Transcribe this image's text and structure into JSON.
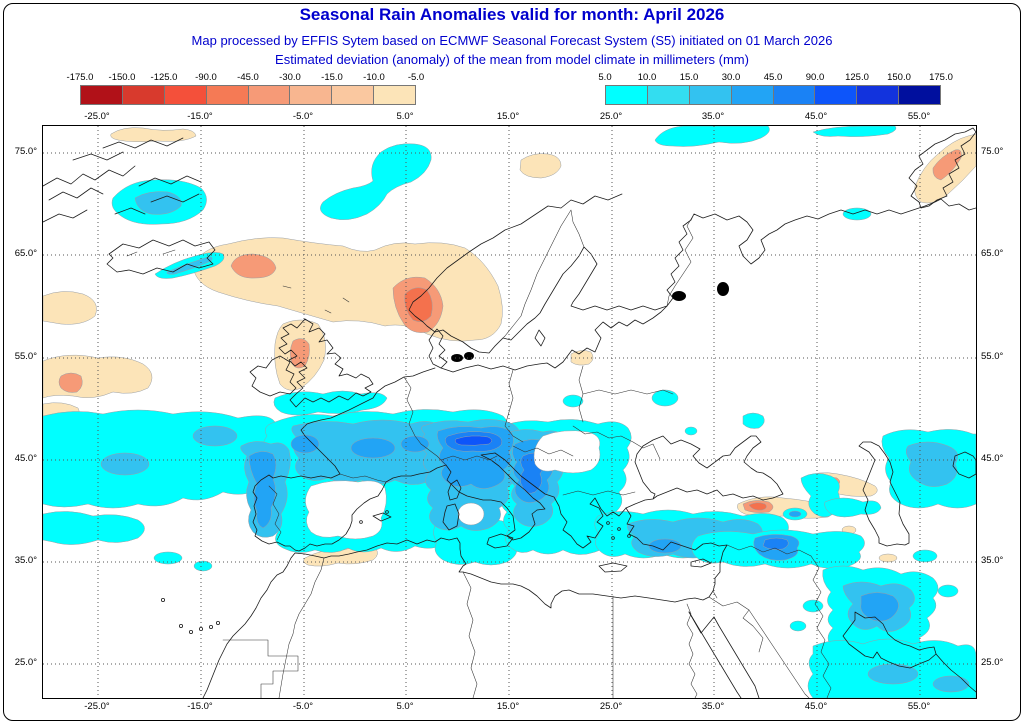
{
  "header": {
    "title": "Seasonal Rain Anomalies valid for month: April 2026",
    "subtitle1": "Map processed by EFFIS Sytem based on ECMWF Seasonal Forecast System (S5) initiated on 01 March 2026",
    "subtitle2": "Estimated deviation (anomaly) of the mean from model climate in millimeters (mm)"
  },
  "colors": {
    "title_text": "#0000cd",
    "subtitle_text": "#0000cd",
    "frame": "#000000",
    "grid": "#555555",
    "coastline": "#1c1c1c"
  },
  "legend_negative": {
    "tick_labels": [
      "-175.0",
      "-150.0",
      "-125.0",
      "-90.0",
      "-45.0",
      "-30.0",
      "-15.0",
      "-10.0",
      "-5.0"
    ],
    "cell_colors": [
      "#b11118",
      "#d83a2d",
      "#f4503a",
      "#f57a55",
      "#f69a77",
      "#f8b690",
      "#fac8a0",
      "#fce4b8"
    ]
  },
  "legend_positive": {
    "tick_labels": [
      "5.0",
      "10.0",
      "15.0",
      "30.0",
      "45.0",
      "90.0",
      "125.0",
      "150.0",
      "175.0"
    ],
    "cell_colors": [
      "#00ffff",
      "#33ddf0",
      "#33c2f0",
      "#22a4f5",
      "#1a82f5",
      "#0d55fa",
      "#1233dd",
      "#000f9e"
    ]
  },
  "axes": {
    "lon_labels": [
      "-25.0°",
      "-15.0°",
      "-5.0°",
      "5.0°",
      "15.0°",
      "25.0°",
      "35.0°",
      "45.0°",
      "55.0°"
    ],
    "lat_labels": [
      "75.0°",
      "65.0°",
      "55.0°",
      "45.0°",
      "35.0°",
      "25.0°"
    ]
  },
  "map": {
    "palette": {
      "anom_neg_light": "#fce4b8",
      "anom_neg_mid": "#f69a77",
      "anom_neg_deep": "#f4714d",
      "anom_pos_1": "#00ffff",
      "anom_pos_2": "#33c2f0",
      "anom_pos_3": "#22a4f5",
      "anom_pos_4": "#1a82f5",
      "anom_pos_5": "#0d55fa"
    }
  }
}
